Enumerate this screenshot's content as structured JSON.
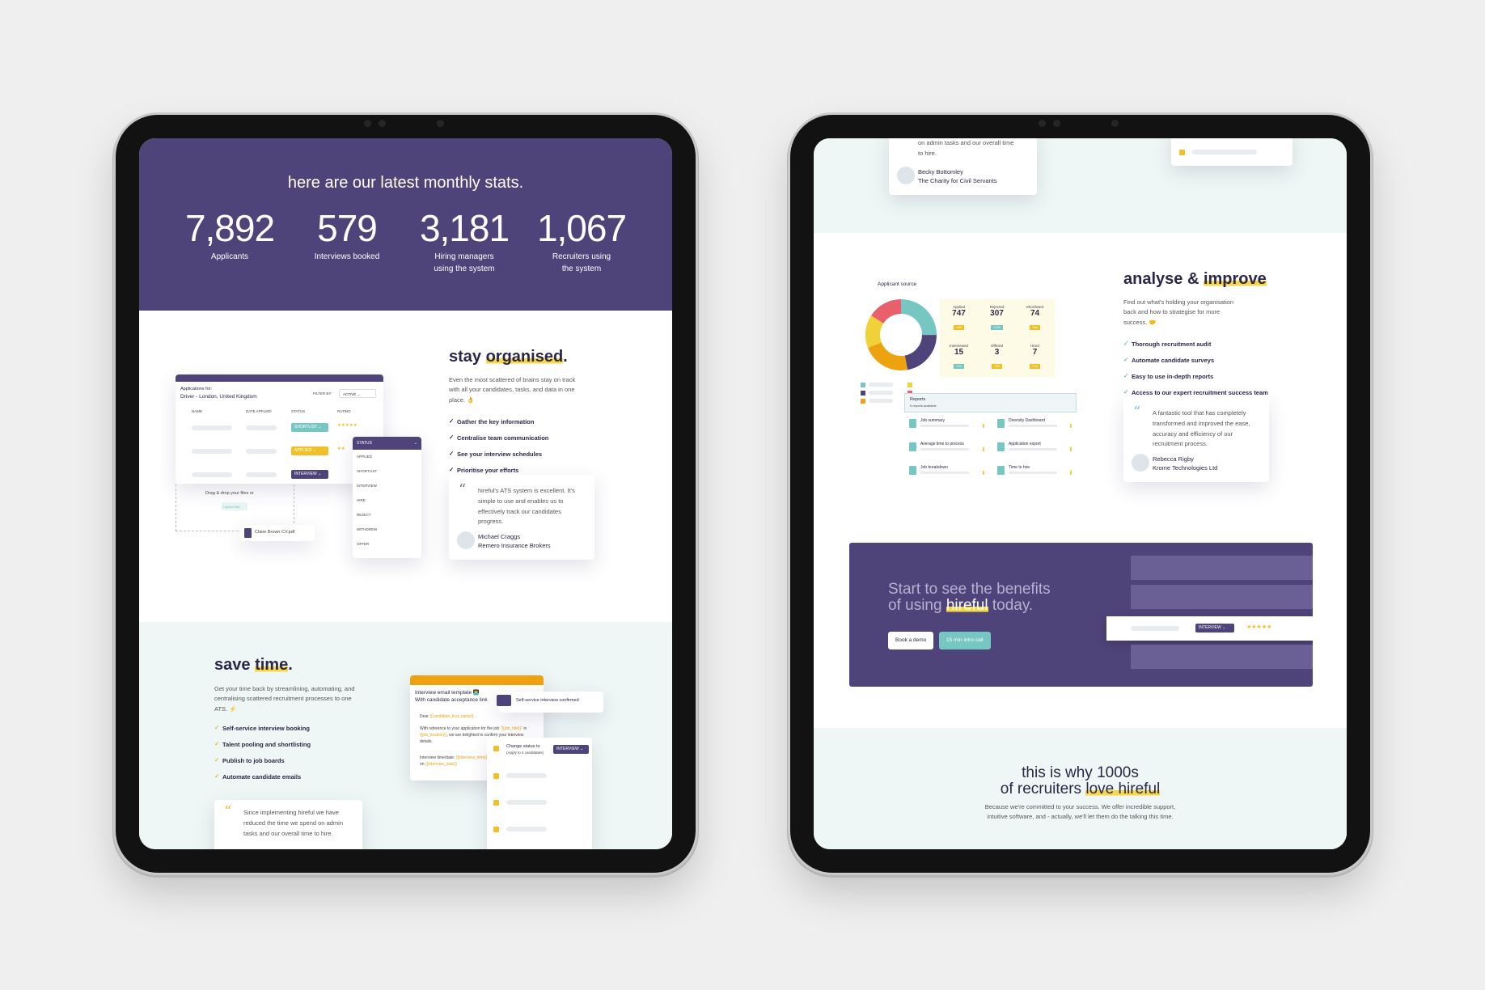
{
  "colors": {
    "purple": "#4f4479",
    "mint": "#eef7f5",
    "yellow": "#f7d64a",
    "teal": "#76c6c2",
    "orange": "#eda20f"
  },
  "left": {
    "stats": {
      "title": "here are our latest monthly stats.",
      "items": [
        {
          "num": "7,892",
          "label": "Applicants"
        },
        {
          "num": "579",
          "label": "Interviews booked"
        },
        {
          "num": "3,181",
          "label": "Hiring managers using the system"
        },
        {
          "num": "1,067",
          "label": "Recruiters using the system"
        }
      ]
    },
    "organised": {
      "title_pre": "stay ",
      "title_hl": "organised",
      "desc": "Even the most scattered of brains stay on track with all your candidates, tasks, and data in one place. 👌",
      "bullets": [
        "Gather the key information",
        "Centralise team communication",
        "See your interview schedules",
        "Prioritise your efforts"
      ],
      "quote": "hireful's ATS system is excellent. It's simple to use and enables us to effectively track our candidates progress.",
      "name": "Michael Craggs",
      "company": "Remero Insurance Brokers",
      "app": {
        "title": "Applications for:",
        "job": "Driver - London, United Kingdom",
        "filter_label": "FILTER BY:",
        "filter_value": "ACTIVE",
        "cols": [
          "NAME",
          "DATE APPLIED",
          "STATUS",
          "RATING"
        ],
        "rows": [
          {
            "status": "SHORTLIST"
          },
          {
            "status": "APPLIED"
          },
          {
            "status": "INTERVIEW"
          }
        ],
        "drop": "Drag & drop your files or",
        "upload": "Upload files",
        "file": "Claire Brown CV.pdf",
        "status_header": "STATUS",
        "status_options": [
          "APPLIED",
          "SHORTLIST",
          "INTERVIEW",
          "HIRE",
          "REJECT",
          "WITHDREW",
          "OFFER"
        ]
      }
    },
    "savetime": {
      "title_pre": "save ",
      "title_hl": "time",
      "desc": "Get your time back by streamlining, automating, and centralising scattered recruitment processes to one ATS. ⚡",
      "bullets": [
        "Self-service interview booking",
        "Talent pooling and shortlisting",
        "Publish to job boards",
        "Automate candidate emails"
      ],
      "quote": "Since implementing hireful we have reduced the time we spend on admin tasks and our overall time to hire.",
      "email": {
        "title": "Interview email template 👨‍💻",
        "subtitle": "With candidate acceptance link",
        "dear": "Dear",
        "dear_var": "{{candidate_first_name}},",
        "body": "With reference to your application for the job",
        "var_job": "\"{{job_title}}\"",
        "in": " in ",
        "var_loc": "{{job_location}}",
        "body2": ", we are delighted to confirm your interview details.",
        "time_label": "Interview time/date: ",
        "time_var": "{{interview_time}}",
        "on": "on ",
        "date_var": "{{interview_date}}"
      },
      "confirmed": "Self-service interview confirmed",
      "change_status": "Change status to",
      "apply_to": "(Apply to 4 candidates)",
      "interview_pill": "INTERVIEW"
    }
  },
  "right": {
    "top_quote": {
      "text": "on admin tasks and our overall time to hire.",
      "name": "Becky Bottomley",
      "company": "The Charity for Civil Servants"
    },
    "analyse": {
      "title_pre": "analyse & ",
      "title_hl": "improve",
      "desc": "Find out what's holding your organisation back and how to strategise for more success. 🤝",
      "bullets": [
        "Thorough recruitment audit",
        "Automate candidate surveys",
        "Easy to use in-depth reports",
        "Access to our expert recruitment success team"
      ],
      "quote": "A fantastic tool that has completely transformed and improved the ease, accuracy and efficiency of our recruitment process.",
      "name": "Rebecca Rigby",
      "company": "Krome Technologies Ltd",
      "dash_title": "Applicant source",
      "tiles": [
        {
          "label": "Applied",
          "value": "747",
          "badge": "+4%"
        },
        {
          "label": "Rejected",
          "value": "307",
          "badge": "+12%"
        },
        {
          "label": "Shortlisted",
          "value": "74",
          "badge": "+6%"
        },
        {
          "label": "Interviewed",
          "value": "15",
          "badge": "+1%"
        },
        {
          "label": "Offered",
          "value": "3",
          "badge": "+2%"
        },
        {
          "label": "Hired",
          "value": "7",
          "badge": "+1%"
        }
      ],
      "donut": [
        {
          "color": "#76c6c2",
          "share": 0.25
        },
        {
          "color": "#4f4479",
          "share": 0.22
        },
        {
          "color": "#eda20f",
          "share": 0.22
        },
        {
          "color": "#f0d137",
          "share": 0.15
        },
        {
          "color": "#e8606c",
          "share": 0.16
        }
      ],
      "reports_title": "Reports",
      "reports_sub": "6 reports available",
      "reports": [
        "Job summary",
        "Diversity Dashboard",
        "Average time to process",
        "Application export",
        "Job breakdown",
        "Time to hire"
      ]
    },
    "cta": {
      "line1": "Start to see the benefits",
      "line2_pre": "of using ",
      "line2_hl": "hireful",
      "line2_post": " today.",
      "demo": "Book a demo",
      "intro": "15 min intro call",
      "row_pill": "INTERVIEW",
      "stars": "★★★★★"
    },
    "why": {
      "line1": "this is why 1000s",
      "line2_pre": "of recruiters ",
      "line2_hl": "love hireful",
      "desc1": "Because we're committed to your success. We offer incredible support,",
      "desc2": "intuitive software, and - actually, we'll let them do the talking this time."
    }
  }
}
